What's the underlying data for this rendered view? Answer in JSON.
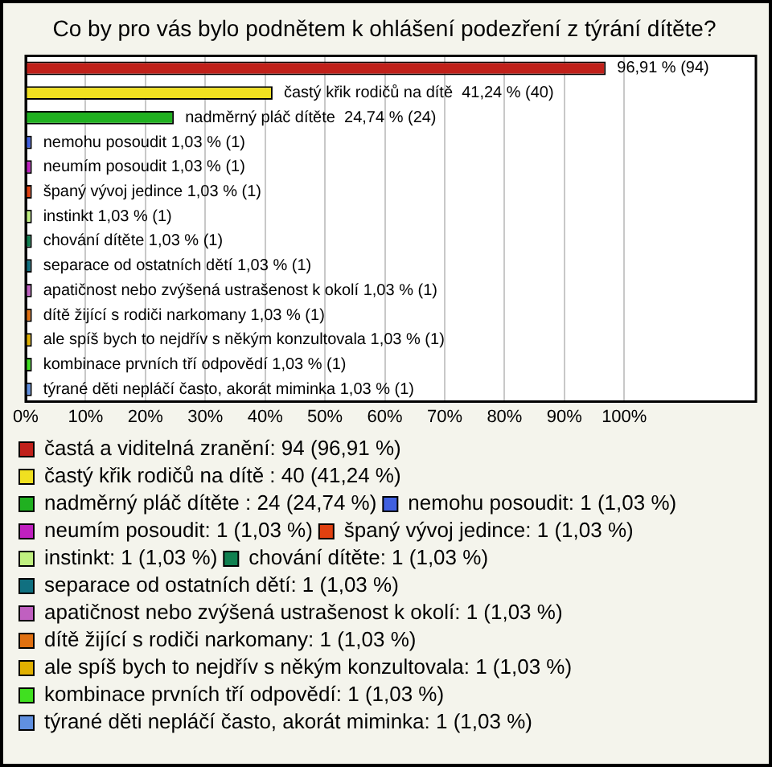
{
  "chart_data": {
    "type": "bar",
    "orientation": "horizontal",
    "stacked": true,
    "title": "Co by pro vás bylo podnětem k ohlášení podezření z týrání dítěte?",
    "categories": [
      null,
      null,
      null,
      null,
      null,
      null,
      null,
      null,
      null,
      null,
      null,
      null,
      null,
      null
    ],
    "series": [
      {
        "name": "častá a viditelná zranění: 94 (96,91 %)",
        "color": "#c0201a",
        "values": [
          96.91,
          null,
          null,
          null,
          null,
          null,
          null,
          null,
          null,
          null,
          null,
          null,
          null,
          null
        ],
        "value_labels": [
          "96,91 % (94)",
          null,
          null,
          null,
          null,
          null,
          null,
          null,
          null,
          null,
          null,
          null,
          null,
          null
        ]
      },
      {
        "name": "častý křik rodičů na dítě : 40 (41,24 %)",
        "color": "#f0e020",
        "values": [
          null,
          41.24,
          null,
          null,
          null,
          null,
          null,
          null,
          null,
          null,
          null,
          null,
          null,
          null
        ],
        "value_labels": [
          null,
          "častý křik rodičů na dítě  41,24 % (40)",
          null,
          null,
          null,
          null,
          null,
          null,
          null,
          null,
          null,
          null,
          null,
          null
        ]
      },
      {
        "name": "nadměrný pláč dítěte : 24 (24,74 %)",
        "color": "#20b020",
        "values": [
          null,
          null,
          24.74,
          null,
          null,
          null,
          null,
          null,
          null,
          null,
          null,
          null,
          null,
          null
        ],
        "value_labels": [
          null,
          null,
          "nadměrný pláč dítěte  24,74 % (24)",
          null,
          null,
          null,
          null,
          null,
          null,
          null,
          null,
          null,
          null,
          null
        ]
      },
      {
        "name": "nemohu posoudit: 1 (1,03 %)",
        "color": "#4060e0",
        "values": [
          null,
          null,
          null,
          1.03,
          null,
          null,
          null,
          null,
          null,
          null,
          null,
          null,
          null,
          null
        ],
        "value_labels": [
          null,
          null,
          null,
          "nemohu posoudit 1,03 % (1)",
          null,
          null,
          null,
          null,
          null,
          null,
          null,
          null,
          null,
          null
        ]
      },
      {
        "name": "neumím posoudit: 1 (1,03 %)",
        "color": "#c020c0",
        "values": [
          null,
          null,
          null,
          null,
          1.03,
          null,
          null,
          null,
          null,
          null,
          null,
          null,
          null,
          null
        ],
        "value_labels": [
          null,
          null,
          null,
          null,
          "neumím posoudit 1,03 % (1)",
          null,
          null,
          null,
          null,
          null,
          null,
          null,
          null,
          null
        ]
      },
      {
        "name": "španý vývoj jedince: 1 (1,03 %)",
        "color": "#e04010",
        "values": [
          null,
          null,
          null,
          null,
          null,
          1.03,
          null,
          null,
          null,
          null,
          null,
          null,
          null,
          null
        ],
        "value_labels": [
          null,
          null,
          null,
          null,
          null,
          "španý vývoj jedince 1,03 % (1)",
          null,
          null,
          null,
          null,
          null,
          null,
          null,
          null
        ]
      },
      {
        "name": "instinkt: 1 (1,03 %)",
        "color": "#c0f080",
        "values": [
          null,
          null,
          null,
          null,
          null,
          null,
          1.03,
          null,
          null,
          null,
          null,
          null,
          null,
          null
        ],
        "value_labels": [
          null,
          null,
          null,
          null,
          null,
          null,
          "instinkt 1,03 % (1)",
          null,
          null,
          null,
          null,
          null,
          null,
          null
        ]
      },
      {
        "name": "chování dítěte: 1 (1,03 %)",
        "color": "#108050",
        "values": [
          null,
          null,
          null,
          null,
          null,
          null,
          null,
          1.03,
          null,
          null,
          null,
          null,
          null,
          null
        ],
        "value_labels": [
          null,
          null,
          null,
          null,
          null,
          null,
          null,
          "chování dítěte 1,03 % (1)",
          null,
          null,
          null,
          null,
          null,
          null
        ]
      },
      {
        "name": "separace od ostatních dětí: 1 (1,03 %)",
        "color": "#107080",
        "values": [
          null,
          null,
          null,
          null,
          null,
          null,
          null,
          null,
          1.03,
          null,
          null,
          null,
          null,
          null
        ],
        "value_labels": [
          null,
          null,
          null,
          null,
          null,
          null,
          null,
          null,
          "separace od ostatních dětí 1,03 % (1)",
          null,
          null,
          null,
          null,
          null
        ]
      },
      {
        "name": "apatičnost nebo zvýšená ustrašenost k okolí: 1 (1,03 %)",
        "color": "#c060c0",
        "values": [
          null,
          null,
          null,
          null,
          null,
          null,
          null,
          null,
          null,
          1.03,
          null,
          null,
          null,
          null
        ],
        "value_labels": [
          null,
          null,
          null,
          null,
          null,
          null,
          null,
          null,
          null,
          "apatičnost nebo zvýšená ustrašenost k okolí 1,03 % (1)",
          null,
          null,
          null,
          null
        ]
      },
      {
        "name": "dítě žijící s rodiči narkomany: 1 (1,03 %)",
        "color": "#e07010",
        "values": [
          null,
          null,
          null,
          null,
          null,
          null,
          null,
          null,
          null,
          null,
          1.03,
          null,
          null,
          null
        ],
        "value_labels": [
          null,
          null,
          null,
          null,
          null,
          null,
          null,
          null,
          null,
          null,
          "dítě žijící s rodiči narkomany 1,03 % (1)",
          null,
          null,
          null
        ]
      },
      {
        "name": "ale spíš bych to nejdřív s někým konzultovala: 1 (1,03 %)",
        "color": "#e0b000",
        "values": [
          null,
          null,
          null,
          null,
          null,
          null,
          null,
          null,
          null,
          null,
          null,
          1.03,
          null,
          null
        ],
        "value_labels": [
          null,
          null,
          null,
          null,
          null,
          null,
          null,
          null,
          null,
          null,
          null,
          "ale spíš bych to nejdřív s někým konzultovala 1,03 % (1)",
          null,
          null
        ]
      },
      {
        "name": "kombinace prvních tří odpovědí: 1 (1,03 %)",
        "color": "#40e020",
        "values": [
          null,
          null,
          null,
          null,
          null,
          null,
          null,
          null,
          null,
          null,
          null,
          null,
          1.03,
          null
        ],
        "value_labels": [
          null,
          null,
          null,
          null,
          null,
          null,
          null,
          null,
          null,
          null,
          null,
          null,
          "kombinace prvních tří odpovědí 1,03 % (1)",
          null
        ]
      },
      {
        "name": "týrané děti nepláčí často, akorát miminka: 1 (1,03 %)",
        "color": "#6090e0",
        "values": [
          null,
          null,
          null,
          null,
          null,
          null,
          null,
          null,
          null,
          null,
          null,
          null,
          null,
          1.03
        ],
        "value_labels": [
          null,
          null,
          null,
          null,
          null,
          null,
          null,
          null,
          null,
          null,
          null,
          null,
          null,
          "týrané děti nepláčí často, akorát miminka 1,03 % (1)"
        ]
      }
    ],
    "xlim": [
      0,
      122
    ],
    "xticks": [
      {
        "value": 0,
        "label": "0%"
      },
      {
        "value": 10,
        "label": "10%"
      },
      {
        "value": 20,
        "label": "20%"
      },
      {
        "value": 30,
        "label": "30%"
      },
      {
        "value": 40,
        "label": "40%"
      },
      {
        "value": 50,
        "label": "50%"
      },
      {
        "value": 60,
        "label": "60%"
      },
      {
        "value": 70,
        "label": "70%"
      },
      {
        "value": 80,
        "label": "80%"
      },
      {
        "value": 90,
        "label": "90%"
      },
      {
        "value": 100,
        "label": "100%"
      }
    ],
    "grid": "x",
    "tick_labels": "x",
    "legend": "bottom"
  }
}
